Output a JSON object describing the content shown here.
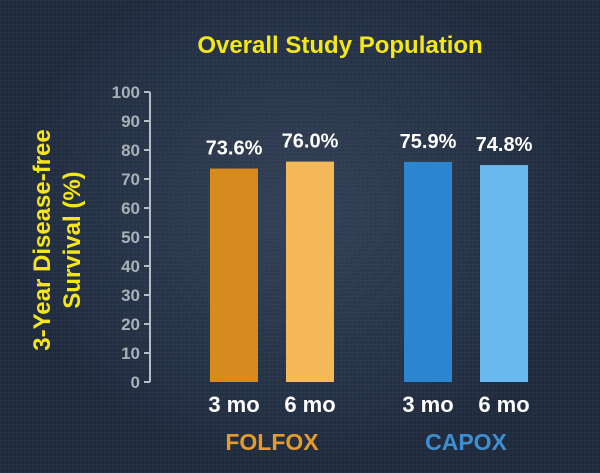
{
  "chart_data": {
    "type": "bar",
    "title": "Overall Study Population",
    "ylabel": "3-Year Disease-free Survival (%)",
    "ylabel_lines": [
      "3-Year Disease-free",
      "Survival (%)"
    ],
    "xlabel": "",
    "ylim": [
      0,
      100
    ],
    "yticks": [
      0,
      10,
      20,
      30,
      40,
      50,
      60,
      70,
      80,
      90,
      100
    ],
    "grid": false,
    "groups": [
      {
        "name": "FOLFOX",
        "color": "#e59a2c",
        "bars": [
          {
            "category": "3 mo",
            "value": 73.6,
            "label": "73.6%",
            "color": "#d98a1e"
          },
          {
            "category": "6 mo",
            "value": 76.0,
            "label": "76.0%",
            "color": "#f5b85a"
          }
        ]
      },
      {
        "name": "CAPOX",
        "color": "#3f8fd0",
        "bars": [
          {
            "category": "3 mo",
            "value": 75.9,
            "label": "75.9%",
            "color": "#2b86cf"
          },
          {
            "category": "6 mo",
            "value": 74.8,
            "label": "74.8%",
            "color": "#6ab8f0"
          }
        ]
      }
    ],
    "colors": {
      "title": "#f5e61a",
      "ylabel": "#f5e61a",
      "axis": "#b8bcc4",
      "tick_labels": "#aab0b8"
    }
  }
}
